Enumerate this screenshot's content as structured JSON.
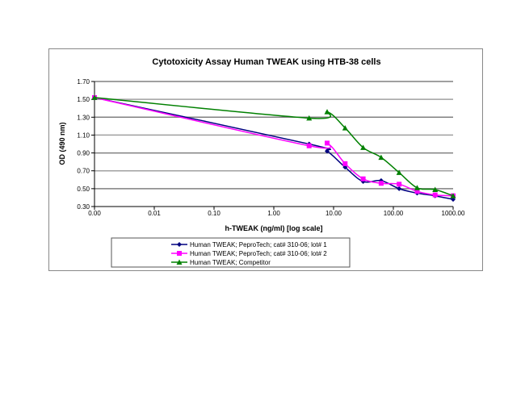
{
  "chart_data": {
    "type": "line",
    "title": "Cytotoxicity Assay Human TWEAK using HTB-38 cells",
    "xlabel": "h-TWEAK (ng/ml) [log scale]",
    "ylabel": "OD (490 nm)",
    "xscale": "log",
    "x_tick_labels": [
      "0.00",
      "0.01",
      "0.10",
      "1.00",
      "10.00",
      "100.00",
      "1000.00"
    ],
    "x_tick_values": [
      0.001,
      0.01,
      0.1,
      1,
      10,
      100,
      1000
    ],
    "y_tick_labels": [
      "0.30",
      "0.50",
      "0.70",
      "0.90",
      "1.10",
      "1.30",
      "1.50",
      "1.70"
    ],
    "ylim": [
      0.3,
      1.7
    ],
    "grid": true,
    "legend_position": "bottom",
    "x": [
      0.001,
      3.9,
      7.8,
      15.6,
      31.25,
      62.5,
      125,
      250,
      500,
      1000
    ],
    "series": [
      {
        "name": "Human TWEAK; PeproTech; cat# 310-06; lot# 1",
        "color": "#000080",
        "marker": "diamond",
        "values": [
          1.52,
          1.0,
          0.92,
          0.74,
          0.58,
          0.59,
          0.5,
          0.45,
          0.42,
          0.38
        ]
      },
      {
        "name": "Human TWEAK; PeproTech; cat# 310-06; lot# 2",
        "color": "#ff00ff",
        "marker": "square",
        "values": [
          1.52,
          0.98,
          1.01,
          0.78,
          0.61,
          0.56,
          0.55,
          0.47,
          0.43,
          0.42
        ]
      },
      {
        "name": "Human TWEAK; Competitor",
        "color": "#008000",
        "marker": "triangle",
        "values": [
          1.52,
          1.29,
          1.36,
          1.18,
          0.96,
          0.85,
          0.68,
          0.51,
          0.49,
          0.42
        ]
      }
    ]
  }
}
